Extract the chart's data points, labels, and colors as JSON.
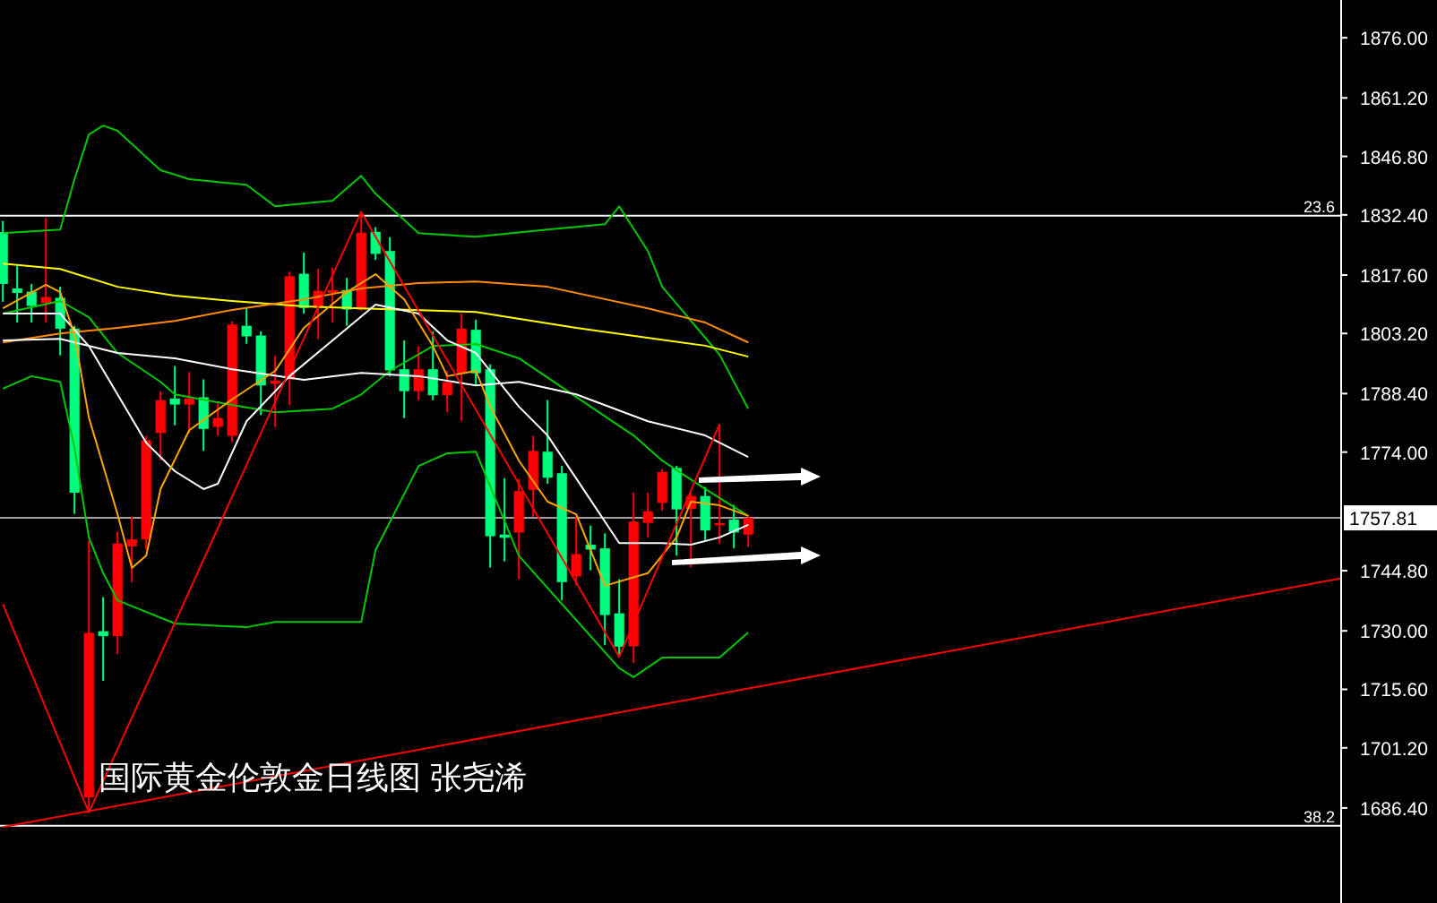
{
  "chart_data": {
    "type": "candlestick",
    "categories": [
      null,
      null,
      null,
      null,
      null,
      null,
      null,
      null,
      null,
      null,
      null,
      null,
      null,
      null,
      null,
      null,
      null,
      null,
      null,
      null,
      null,
      null,
      null,
      null,
      null,
      null,
      null,
      null,
      null,
      null,
      null,
      null,
      null,
      null,
      null,
      null,
      null,
      null,
      null,
      null,
      null,
      null,
      null,
      null,
      null,
      null,
      null,
      null,
      null,
      null,
      null,
      null,
      null
    ],
    "ohlc": [
      [
        1828.2,
        1830.9,
        1811.0,
        1815.4
      ],
      [
        1814.3,
        1819.9,
        1805.9,
        1813.2
      ],
      [
        1813.5,
        1815.4,
        1805.9,
        1810.0
      ],
      [
        1810.7,
        1831.6,
        1805.9,
        1812.2
      ],
      [
        1812.0,
        1814.7,
        1797.8,
        1804.4
      ],
      [
        1804.4,
        1805.1,
        1758.8,
        1764.0
      ],
      [
        1689.0,
        1752.2,
        1685.3,
        1729.5
      ],
      [
        1729.9,
        1738.3,
        1717.7,
        1728.7
      ],
      [
        1728.7,
        1754.4,
        1724.3,
        1751.5
      ],
      [
        1750.8,
        1758.1,
        1742.0,
        1752.5
      ],
      [
        1752.5,
        1778.0,
        1750.0,
        1776.9
      ],
      [
        1778.7,
        1789.0,
        1772.0,
        1786.8
      ],
      [
        1787.2,
        1795.2,
        1780.6,
        1785.7
      ],
      [
        1785.7,
        1793.7,
        1778.7,
        1787.2
      ],
      [
        1787.5,
        1791.9,
        1774.3,
        1779.7
      ],
      [
        1780.2,
        1786.0,
        1778.0,
        1782.4
      ],
      [
        1778.0,
        1806.2,
        1776.5,
        1805.4
      ],
      [
        1805.1,
        1809.5,
        1800.7,
        1802.5
      ],
      [
        1802.7,
        1803.7,
        1783.1,
        1790.4
      ],
      [
        1790.8,
        1797.8,
        1780.2,
        1791.6
      ],
      [
        1791.9,
        1818.4,
        1785.6,
        1817.3
      ],
      [
        1817.9,
        1823.1,
        1808.1,
        1809.5
      ],
      [
        1809.5,
        1819.1,
        1801.8,
        1813.7
      ],
      [
        1813.2,
        1819.4,
        1805.9,
        1813.9
      ],
      [
        1813.9,
        1816.9,
        1805.1,
        1809.1
      ],
      [
        1809.1,
        1833.1,
        1808.8,
        1828.0
      ],
      [
        1828.2,
        1829.4,
        1821.3,
        1822.8
      ],
      [
        1823.5,
        1826.9,
        1792.6,
        1794.1
      ],
      [
        1794.4,
        1801.5,
        1782.4,
        1789.0
      ],
      [
        1789.0,
        1800.0,
        1786.8,
        1794.4
      ],
      [
        1794.4,
        1803.7,
        1786.8,
        1788.0
      ],
      [
        1788.0,
        1794.1,
        1783.8,
        1791.2
      ],
      [
        1793.4,
        1808.1,
        1781.6,
        1804.4
      ],
      [
        1804.1,
        1806.6,
        1790.4,
        1793.4
      ],
      [
        1794.4,
        1795.6,
        1745.6,
        1753.3
      ],
      [
        1753.7,
        1767.6,
        1747.1,
        1752.9
      ],
      [
        1754.2,
        1767.4,
        1742.7,
        1764.4
      ],
      [
        1764.7,
        1778.0,
        1758.1,
        1774.3
      ],
      [
        1774.1,
        1786.8,
        1766.2,
        1767.7
      ],
      [
        1768.8,
        1770.6,
        1737.5,
        1742.0
      ],
      [
        1743.4,
        1758.1,
        1741.2,
        1748.9
      ],
      [
        1751.2,
        1755.9,
        1744.9,
        1750.0
      ],
      [
        1750.3,
        1754.0,
        1726.5,
        1733.9
      ],
      [
        1734.3,
        1742.7,
        1723.6,
        1726.1
      ],
      [
        1726.2,
        1764.0,
        1722.1,
        1756.9
      ],
      [
        1756.6,
        1764.0,
        1753.0,
        1759.4
      ],
      [
        1761.5,
        1769.8,
        1759.6,
        1769.1
      ],
      [
        1770.1,
        1770.6,
        1748.5,
        1759.9
      ],
      [
        1760.0,
        1764.0,
        1745.6,
        1763.2
      ],
      [
        1763.2,
        1765.4,
        1752.2,
        1754.7
      ],
      [
        1756.0,
        1780.9,
        1751.5,
        1756.5
      ],
      [
        1757.4,
        1761.0,
        1750.3,
        1754.2
      ],
      [
        1753.7,
        1758.6,
        1750.7,
        1757.8
      ]
    ],
    "colors": [
      "#00ff80",
      "#00ff80",
      "#00ff80",
      "#ff0000",
      "#00ff80",
      "#00ff80",
      "#ff0000",
      "#00ff80",
      "#ff0000",
      "#ff0000",
      "#ff0000",
      "#ff0000",
      "#00ff80",
      "#ff0000",
      "#00ff80",
      "#ff0000",
      "#ff0000",
      "#00ff80",
      "#00ff80",
      "#ff0000",
      "#ff0000",
      "#00ff80",
      "#ff0000",
      "#ff0000",
      "#00ff80",
      "#ff0000",
      "#00ff80",
      "#00ff80",
      "#00ff80",
      "#ff0000",
      "#00ff80",
      "#ff0000",
      "#ff0000",
      "#00ff80",
      "#00ff80",
      "#00ff80",
      "#ff0000",
      "#ff0000",
      "#00ff80",
      "#00ff80",
      "#ff0000",
      "#00ff80",
      "#00ff80",
      "#00ff80",
      "#ff0000",
      "#ff0000",
      "#ff0000",
      "#00ff80",
      "#ff0000",
      "#00ff80",
      "#ff0000",
      "#00ff80",
      "#ff0000"
    ],
    "series": [
      {
        "type": "line",
        "color": "#00c800",
        "values": [
          1827.9,
          null,
          null,
          null,
          1828.8,
          1841.2,
          1852.2,
          1854.4,
          1853.1,
          null,
          null,
          1843.4,
          null,
          1841.2,
          null,
          null,
          null,
          1839.8,
          null,
          1834.5,
          null,
          null,
          null,
          1835.9,
          null,
          1842.0,
          1837.6,
          null,
          null,
          1827.9,
          null,
          null,
          null,
          1827.0,
          null,
          null,
          null,
          null,
          1828.8,
          null,
          null,
          null,
          1830.1,
          1834.5,
          null,
          1823.5,
          1814.7,
          null,
          null,
          null,
          1798.0,
          null,
          1784.7
        ]
      },
      {
        "type": "line",
        "color": "#00c800",
        "values": [
          1808.1,
          null,
          null,
          null,
          1811.2,
          null,
          1807.2,
          null,
          1798.4,
          null,
          null,
          1791.3,
          1788.2,
          null,
          null,
          null,
          1785.6,
          null,
          null,
          1783.8,
          null,
          null,
          null,
          1784.7,
          null,
          1788.2,
          null,
          1794.0,
          null,
          null,
          1800.1,
          null,
          null,
          1800.6,
          null,
          null,
          1797.1,
          null,
          null,
          null,
          null,
          1785.2,
          null,
          null,
          1778.1,
          null,
          1771.9,
          null,
          null,
          1764.9,
          null,
          null,
          1758.3
        ]
      },
      {
        "type": "line",
        "color": "#00c800",
        "values": [
          1789.6,
          null,
          1792.7,
          null,
          1791.3,
          1775.0,
          1753.0,
          1744.2,
          1737.5,
          null,
          null,
          null,
          1731.8,
          null,
          null,
          null,
          null,
          1730.9,
          null,
          1732.2,
          null,
          null,
          null,
          null,
          null,
          1732.2,
          1749.9,
          null,
          null,
          1770.6,
          null,
          1773.7,
          null,
          1774.1,
          null,
          null,
          1748.5,
          null,
          null,
          1736.6,
          null,
          null,
          null,
          1720.8,
          1718.6,
          null,
          1723.4,
          null,
          null,
          null,
          1723.4,
          null,
          1729.6
        ]
      },
      {
        "type": "line",
        "color": "#ffff00",
        "values": [
          1820.4,
          null,
          null,
          null,
          1819.1,
          null,
          null,
          null,
          1814.7,
          null,
          null,
          null,
          1812.5,
          null,
          null,
          null,
          1811.2,
          null,
          null,
          null,
          null,
          1809.9,
          null,
          null,
          null,
          1809.4,
          null,
          null,
          null,
          null,
          null,
          null,
          null,
          1808.5,
          null,
          null,
          null,
          null,
          null,
          null,
          1804.6,
          null,
          null,
          null,
          null,
          null,
          null,
          null,
          null,
          1800.2,
          null,
          null,
          1797.5
        ]
      },
      {
        "type": "line",
        "color": "#ff8c00",
        "values": [
          1801.0,
          null,
          null,
          null,
          1803.2,
          null,
          null,
          null,
          1804.6,
          null,
          null,
          null,
          1806.3,
          null,
          null,
          null,
          1809.0,
          null,
          null,
          null,
          null,
          1811.6,
          null,
          null,
          null,
          1814.3,
          null,
          null,
          null,
          1815.6,
          null,
          null,
          null,
          1816.0,
          null,
          null,
          null,
          null,
          1814.7,
          null,
          null,
          null,
          null,
          null,
          null,
          1809.4,
          null,
          null,
          null,
          1805.9,
          null,
          null,
          1801.0
        ]
      },
      {
        "type": "line",
        "color": "#ffffff",
        "values": [
          1801.5,
          null,
          null,
          null,
          1801.9,
          null,
          null,
          null,
          1798.4,
          null,
          null,
          null,
          1797.1,
          null,
          null,
          null,
          1794.4,
          null,
          null,
          null,
          null,
          1791.8,
          null,
          null,
          null,
          1793.5,
          null,
          null,
          null,
          1792.7,
          null,
          null,
          null,
          1790.4,
          null,
          null,
          1791.3,
          null,
          null,
          null,
          1788.2,
          null,
          null,
          null,
          null,
          1781.6,
          null,
          null,
          null,
          1778.1,
          null,
          null,
          1772.8
        ]
      },
      {
        "type": "line",
        "color": "#ffffff",
        "values": [
          1808.1,
          null,
          null,
          null,
          1808.1,
          null,
          1800.1,
          null,
          1788.2,
          null,
          1776.3,
          null,
          1769.3,
          null,
          1764.9,
          1766.2,
          null,
          1781.6,
          null,
          null,
          1792.7,
          null,
          null,
          1801.5,
          null,
          null,
          1810.3,
          null,
          null,
          1808.1,
          null,
          1801.5,
          null,
          1798.4,
          null,
          null,
          1785.2,
          null,
          1778.1,
          null,
          1767.5,
          null,
          null,
          1751.6,
          null,
          null,
          1751.6,
          null,
          1751.2,
          null,
          1753.0,
          null,
          1756.1
        ]
      },
      {
        "type": "line",
        "color": "#ffa500",
        "values": [
          1809.4,
          null,
          null,
          1815.2,
          1813.4,
          1802.8,
          1782.5,
          null,
          1758.7,
          1745.5,
          1748.5,
          1764.9,
          null,
          1779.4,
          null,
          null,
          1787.0,
          null,
          null,
          1794.0,
          null,
          1804.6,
          null,
          null,
          1813.4,
          null,
          1817.8,
          null,
          1811.6,
          null,
          1800.1,
          1792.7,
          null,
          1794.0,
          1785.2,
          null,
          1771.9,
          null,
          1761.8,
          null,
          1758.7,
          null,
          1741.1,
          null,
          null,
          1744.2,
          null,
          1753.0,
          1761.8,
          null,
          1760.9,
          null,
          1758.3
        ]
      },
      {
        "type": "line",
        "color": "#ff0000",
        "values": [
          1736.6,
          null,
          null,
          null,
          null,
          null,
          1685.3,
          null,
          null,
          null,
          null,
          null,
          null,
          null,
          null,
          null,
          null,
          null,
          null,
          null,
          null,
          null,
          null,
          null,
          null,
          1833.1,
          null,
          null,
          null,
          null,
          null,
          null,
          null,
          null,
          null,
          null,
          null,
          null,
          null,
          null,
          null,
          null,
          null,
          1723.6,
          null,
          null,
          null,
          null,
          null,
          null,
          1780.9,
          null,
          null
        ]
      },
      {
        "type": "line",
        "color": "#ff0000",
        "values": [
          1681.7,
          null,
          null,
          null,
          null,
          null,
          null,
          null,
          null,
          null,
          null,
          null,
          null,
          null,
          null,
          null,
          null,
          null,
          null,
          null,
          null,
          null,
          null,
          null,
          null,
          null,
          null,
          null,
          null,
          null,
          null,
          null,
          null,
          null,
          null,
          null,
          null,
          null,
          null,
          null,
          null,
          null,
          null,
          null,
          null,
          null,
          null,
          null,
          null,
          null,
          null,
          null,
          1715.8
        ]
      }
    ],
    "ylim": [
      1663.0,
      1885.3
    ],
    "yticks": [
      {
        "value": 1876.0,
        "label": "1876.00"
      },
      {
        "value": 1861.2,
        "label": "1861.20"
      },
      {
        "value": 1846.8,
        "label": "1846.80"
      },
      {
        "value": 1832.4,
        "label": "1832.40"
      },
      {
        "value": 1817.6,
        "label": "1817.60"
      },
      {
        "value": 1803.2,
        "label": "1803.20"
      },
      {
        "value": 1788.4,
        "label": "1788.40"
      },
      {
        "value": 1774.0,
        "label": "1774.00"
      },
      {
        "value": 1744.8,
        "label": "1744.80"
      },
      {
        "value": 1730.0,
        "label": "1730.00"
      },
      {
        "value": 1715.6,
        "label": "1715.60"
      },
      {
        "value": 1701.2,
        "label": "1701.20"
      },
      {
        "value": 1686.4,
        "label": "1686.40"
      }
    ],
    "ref_lines": [
      {
        "axis": "y",
        "value": 1832.2,
        "color": "#ffffff"
      },
      {
        "axis": "y",
        "value": 1682.0,
        "color": "#ffffff"
      },
      {
        "axis": "y",
        "value": 1757.81,
        "label": "1757.81",
        "color": "#a0a0a0"
      }
    ],
    "annotations": [
      "国际黄金伦敦金日线图  张尧浠",
      {
        "text": "23.6",
        "y": 1832.2
      },
      {
        "text": "38.2",
        "y": 1682.0
      }
    ]
  }
}
